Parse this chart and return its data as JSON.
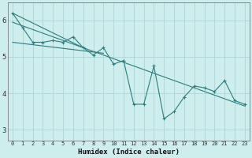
{
  "xlabel": "Humidex (Indice chaleur)",
  "background_color": "#ceeeed",
  "grid_color": "#aed4d3",
  "line_color": "#2d7d7d",
  "xlim": [
    -0.5,
    23.5
  ],
  "ylim": [
    2.7,
    6.5
  ],
  "yticks": [
    3,
    4,
    5,
    6
  ],
  "xtick_labels": [
    "0",
    "1",
    "2",
    "3",
    "4",
    "5",
    "6",
    "7",
    "8",
    "9",
    "10",
    "11",
    "12",
    "13",
    "14",
    "15",
    "16",
    "17",
    "18",
    "19",
    "20",
    "21",
    "22",
    "23"
  ],
  "main_series_x": [
    0,
    1,
    2,
    3,
    4,
    5,
    6,
    7,
    8,
    9,
    10,
    11,
    12,
    13,
    14,
    15,
    16,
    17,
    18,
    19,
    20,
    21,
    22,
    23
  ],
  "main_series_y": [
    6.2,
    5.8,
    5.4,
    5.4,
    5.45,
    5.4,
    5.55,
    5.25,
    5.05,
    5.25,
    4.8,
    4.9,
    3.7,
    3.7,
    4.75,
    3.3,
    3.5,
    3.9,
    4.2,
    4.15,
    4.05,
    4.35,
    3.8,
    3.7
  ],
  "trend_line_x": [
    0,
    23
  ],
  "trend_line_y": [
    5.95,
    3.65
  ],
  "extra_line1_x": [
    0,
    7
  ],
  "extra_line1_y": [
    6.2,
    5.25
  ],
  "extra_line2_x": [
    0,
    9
  ],
  "extra_line2_y": [
    5.4,
    5.1
  ]
}
